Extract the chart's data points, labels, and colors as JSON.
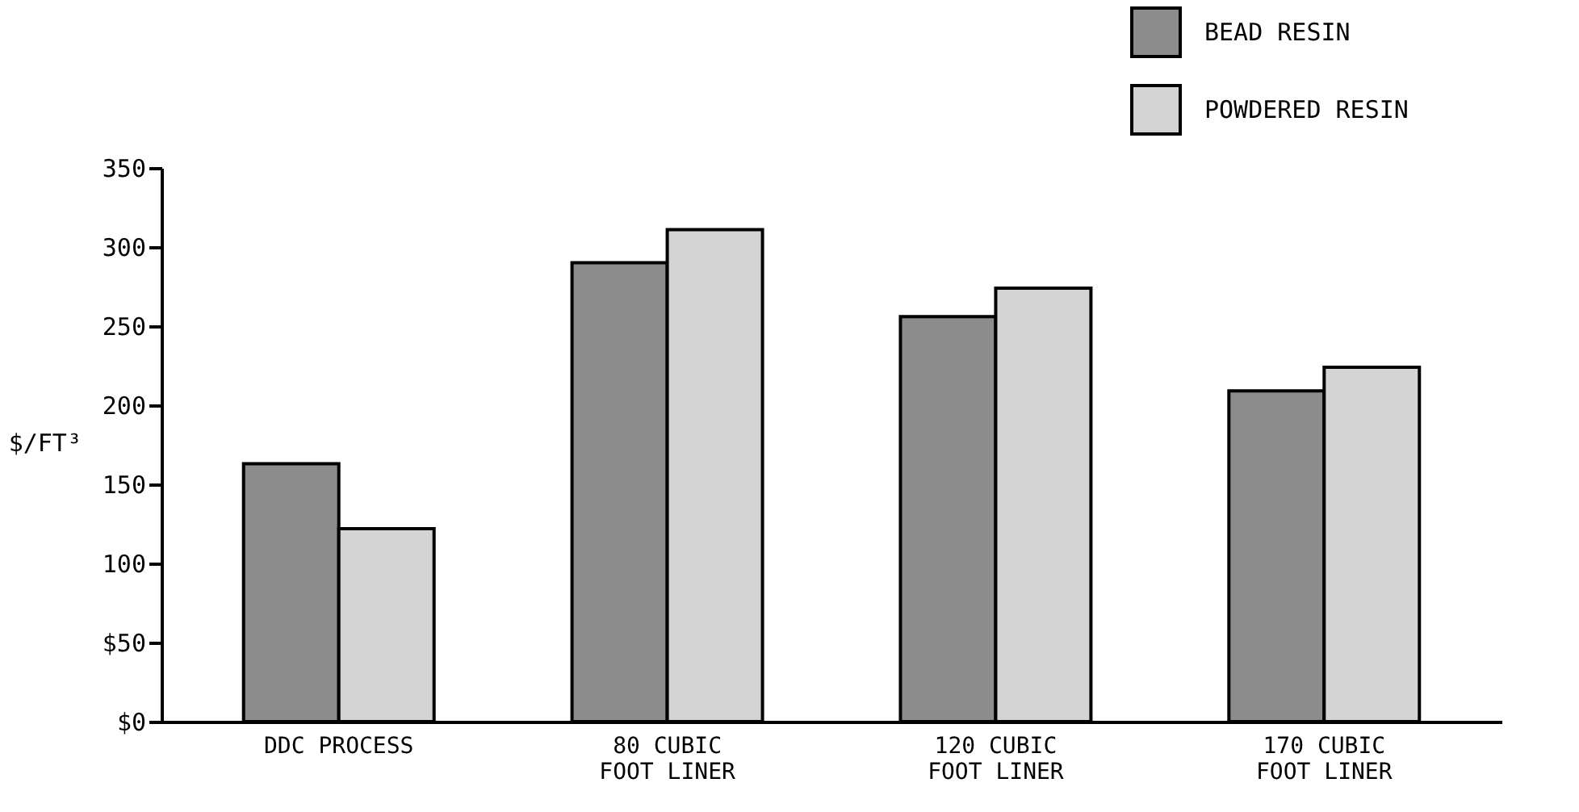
{
  "chart_data": {
    "type": "bar",
    "categories": [
      "DDC PROCESS",
      "80 CUBIC\nFOOT LINER",
      "120 CUBIC\nFOOT LINER",
      "170 CUBIC\nFOOT LINER"
    ],
    "series": [
      {
        "name": "BEAD RESIN",
        "color": "#8c8c8c",
        "values": [
          163,
          290,
          256,
          209
        ]
      },
      {
        "name": "POWDERED RESIN",
        "color": "#d4d4d4",
        "values": [
          122,
          311,
          274,
          224
        ]
      }
    ],
    "ylabel": "$/FT³",
    "ylim": [
      0,
      350
    ],
    "yticks": [
      {
        "value": 0,
        "label": "$0"
      },
      {
        "value": 50,
        "label": "$50"
      },
      100,
      150,
      200,
      250,
      300,
      350
    ],
    "grid": false,
    "legend": "top right"
  }
}
